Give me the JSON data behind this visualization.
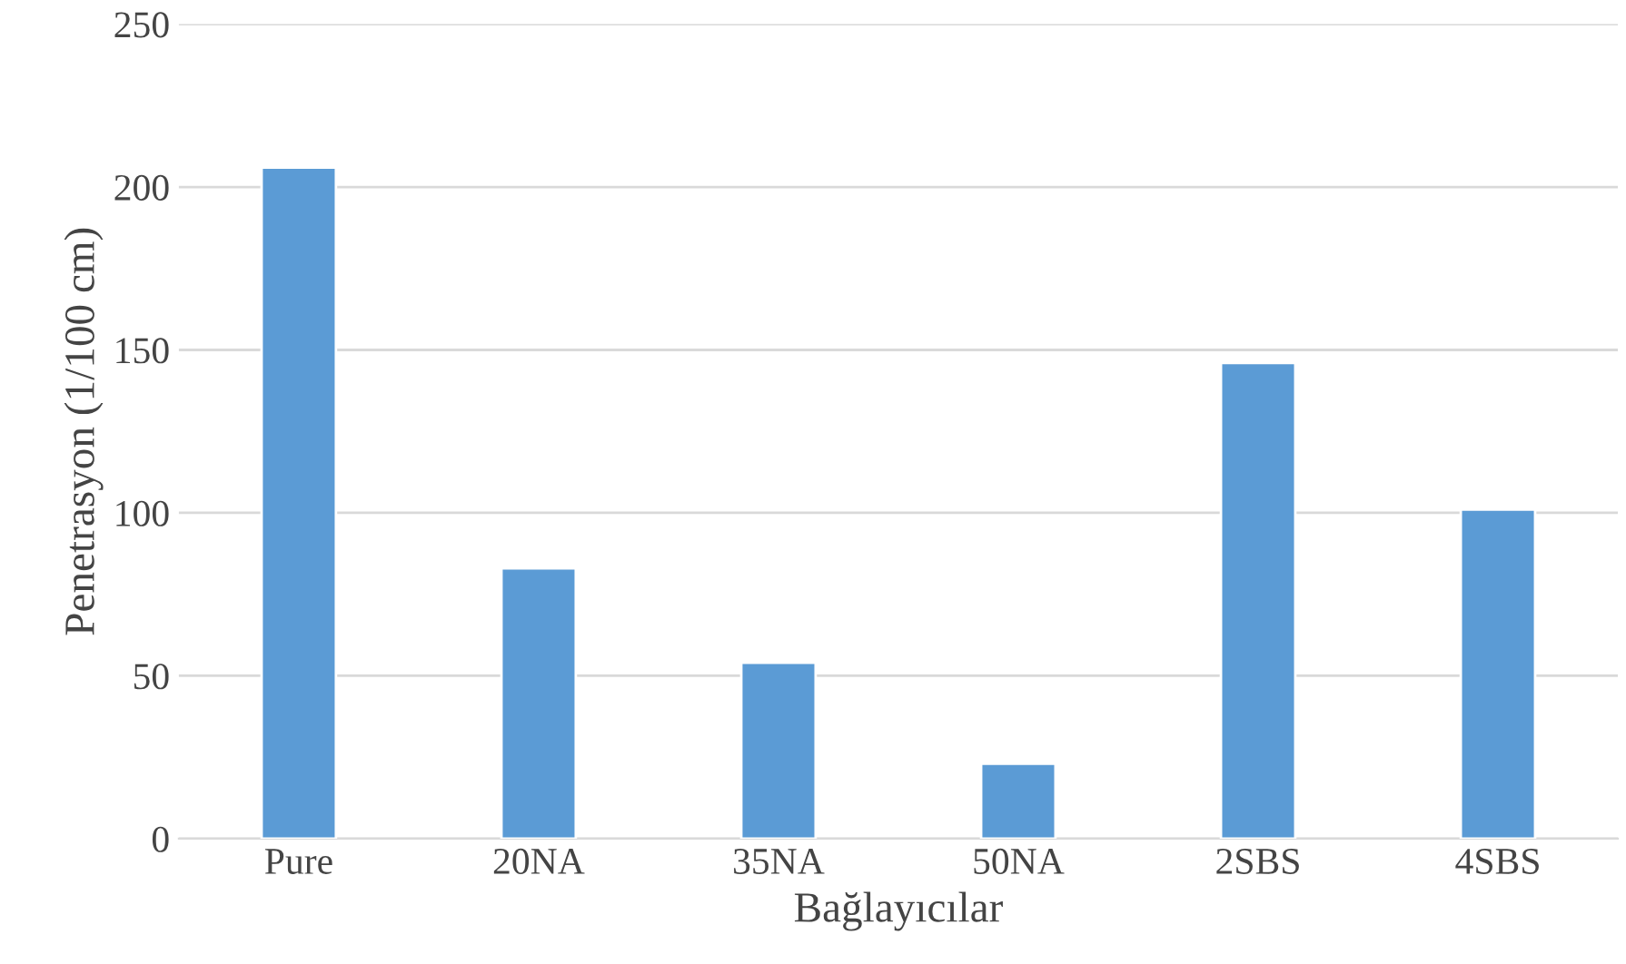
{
  "chart_data": {
    "type": "bar",
    "xlabel": "Bağlayıcılar",
    "ylabel": "Penetrasyon (1/100 cm)",
    "categories": [
      "Pure",
      "20NA",
      "35NA",
      "50NA",
      "2SBS",
      "4SBS"
    ],
    "values": [
      206,
      83,
      54,
      23,
      146,
      101
    ],
    "color": "#5b9bd5",
    "ylim": [
      0,
      250
    ],
    "yticks": [
      0,
      50,
      100,
      150,
      200,
      250
    ],
    "grid": "y",
    "legend": false
  }
}
